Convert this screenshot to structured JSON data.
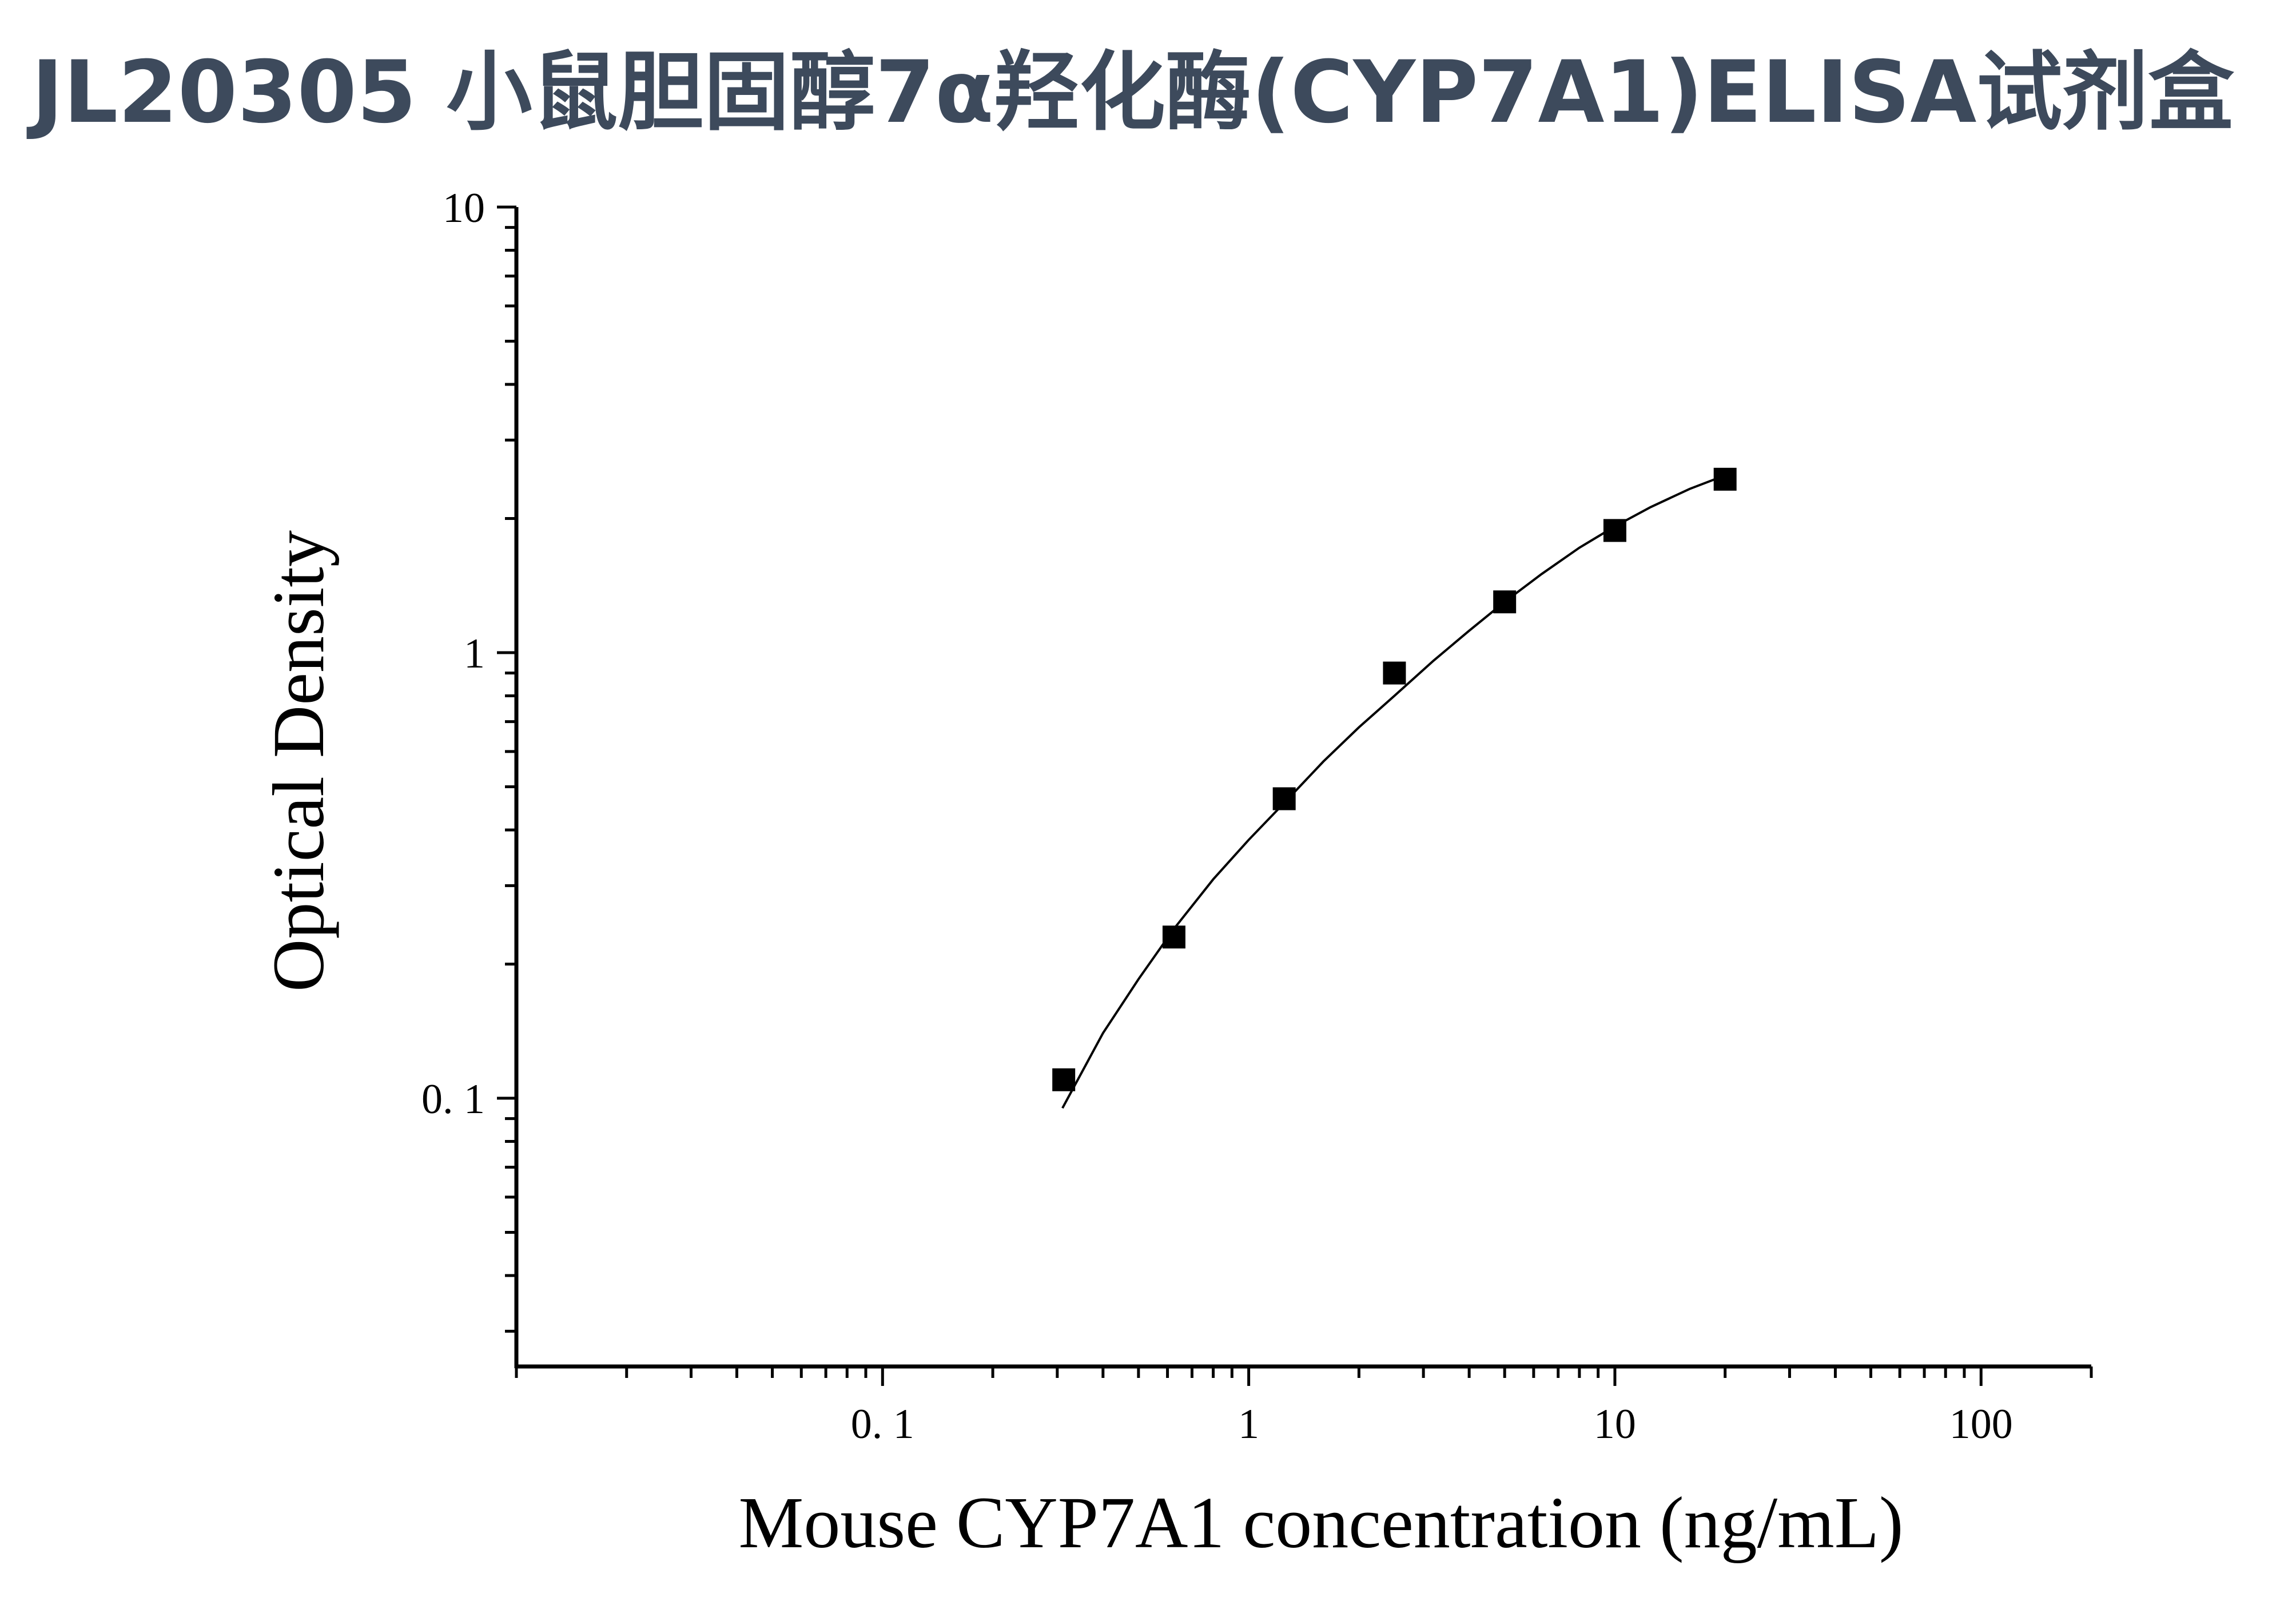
{
  "title": "JL20305 小鼠胆固醇7α羟化酶(CYP7A1)ELISA试剂盒",
  "colors": {
    "title": "#3d4a5c",
    "axis": "#000000",
    "marker": "#000000"
  },
  "chart_data": {
    "type": "scatter",
    "title": "",
    "xlabel": "Mouse  CYP7A1 concentration (ng/mL)",
    "ylabel": "Optical Density",
    "xscale": "log",
    "yscale": "log",
    "xlim": [
      0.01,
      200
    ],
    "ylim": [
      0.025,
      10
    ],
    "xticks": [
      {
        "value": 0.1,
        "label": "0. 1"
      },
      {
        "value": 1,
        "label": "1"
      },
      {
        "value": 10,
        "label": "10"
      },
      {
        "value": 100,
        "label": "100"
      }
    ],
    "yticks": [
      {
        "value": 0.1,
        "label": "0. 1"
      },
      {
        "value": 1,
        "label": "1"
      },
      {
        "value": 10,
        "label": "10"
      }
    ],
    "grid": false,
    "legend": "none",
    "series": [
      {
        "x": [
          0.3125,
          0.625,
          1.25,
          2.5,
          5,
          10,
          20
        ],
        "y": [
          0.11,
          0.23,
          0.47,
          0.9,
          1.3,
          1.88,
          2.45
        ]
      }
    ],
    "fit_curve": {
      "x": [
        0.31,
        0.4,
        0.5,
        0.625,
        0.8,
        1.0,
        1.25,
        1.6,
        2.0,
        2.5,
        3.2,
        4.0,
        5.0,
        6.3,
        8.0,
        10,
        12.5,
        16,
        20
      ],
      "y": [
        0.095,
        0.14,
        0.185,
        0.24,
        0.31,
        0.38,
        0.46,
        0.57,
        0.68,
        0.8,
        0.96,
        1.12,
        1.3,
        1.5,
        1.72,
        1.92,
        2.12,
        2.33,
        2.5
      ]
    }
  }
}
